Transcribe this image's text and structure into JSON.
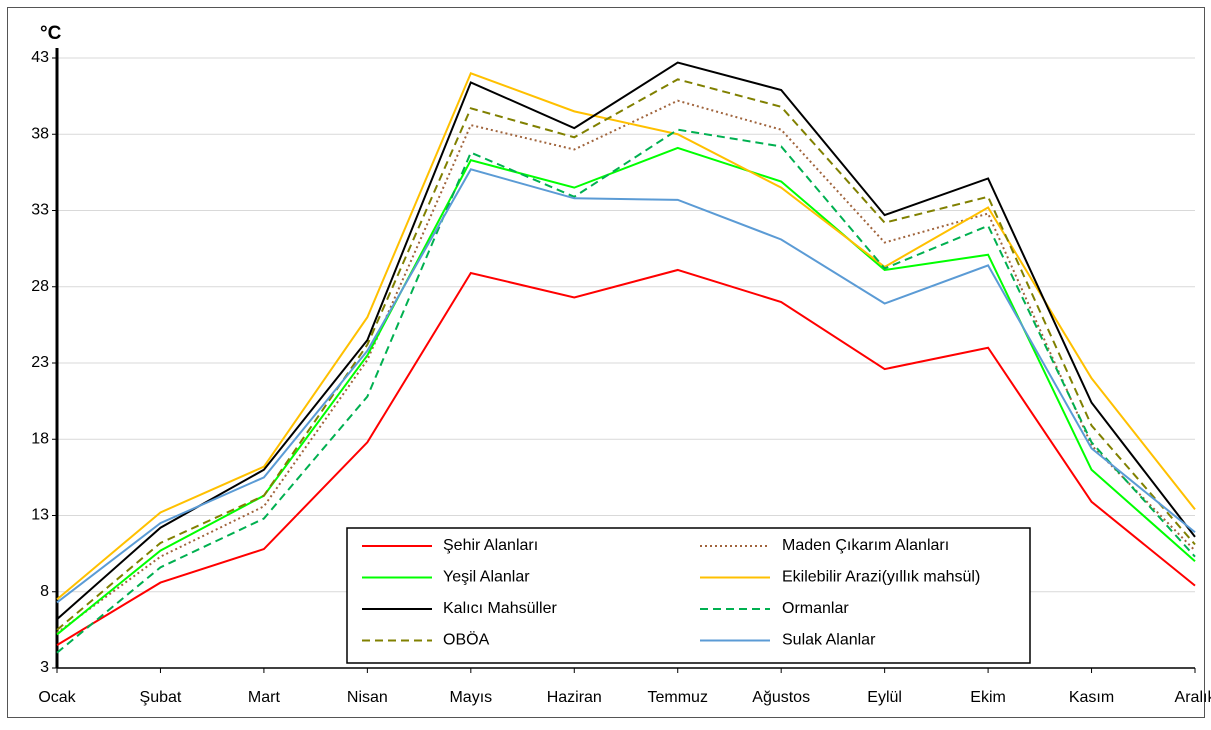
{
  "chart_data": {
    "type": "line",
    "y_label": "°C",
    "categories": [
      "Ocak",
      "Şubat",
      "Mart",
      "Nisan",
      "Mayıs",
      "Haziran",
      "Temmuz",
      "Ağustos",
      "Eylül",
      "Ekim",
      "Kasım",
      "Aralık"
    ],
    "ylim": [
      3,
      43
    ],
    "yticks": [
      3,
      8,
      13,
      18,
      23,
      28,
      33,
      38,
      43
    ],
    "grid": true,
    "legend": "bottom",
    "series": [
      {
        "name": "Şehir Alanları",
        "color": "#ff0000",
        "style": "solid",
        "values": [
          4.5,
          8.6,
          10.8,
          17.8,
          28.9,
          27.3,
          29.1,
          27.0,
          22.6,
          24.0,
          13.9,
          8.4
        ]
      },
      {
        "name": "Maden Çıkarım Alanları",
        "color": "#a0643c",
        "style": "dotted",
        "values": [
          5.3,
          10.3,
          13.6,
          23.2,
          38.6,
          37.0,
          40.2,
          38.3,
          30.9,
          32.8,
          17.6,
          10.7
        ]
      },
      {
        "name": "Yeşil Alanlar",
        "color": "#00ff00",
        "style": "solid",
        "values": [
          5.2,
          10.7,
          14.3,
          23.5,
          36.3,
          34.5,
          37.1,
          34.9,
          29.1,
          30.1,
          16.0,
          10.0
        ]
      },
      {
        "name": "Ekilebilir Arazi(yıllık mahsül)",
        "color": "#ffc000",
        "style": "solid",
        "values": [
          7.5,
          13.2,
          16.2,
          26.0,
          42.0,
          39.5,
          38.0,
          34.5,
          29.3,
          33.2,
          22.0,
          13.4
        ]
      },
      {
        "name": "Kalıcı Mahsüller",
        "color": "#000000",
        "style": "solid",
        "values": [
          6.2,
          12.2,
          16.0,
          24.5,
          41.4,
          38.4,
          42.7,
          40.9,
          32.7,
          35.1,
          20.4,
          11.6
        ]
      },
      {
        "name": "Ormanlar",
        "color": "#00b050",
        "style": "dashed",
        "values": [
          4.0,
          9.6,
          12.8,
          20.8,
          36.8,
          33.9,
          38.3,
          37.2,
          29.2,
          32.0,
          17.8,
          10.3
        ]
      },
      {
        "name": "OBÖA",
        "color": "#808000",
        "style": "dashed",
        "values": [
          5.5,
          11.2,
          14.3,
          24.2,
          39.7,
          37.8,
          41.6,
          39.8,
          32.2,
          33.9,
          18.9,
          11.1
        ]
      },
      {
        "name": "Sulak Alanlar",
        "color": "#5b9bd5",
        "style": "solid",
        "values": [
          7.3,
          12.5,
          15.5,
          23.8,
          35.7,
          33.8,
          33.7,
          31.1,
          26.9,
          29.4,
          17.4,
          11.9
        ]
      }
    ]
  }
}
